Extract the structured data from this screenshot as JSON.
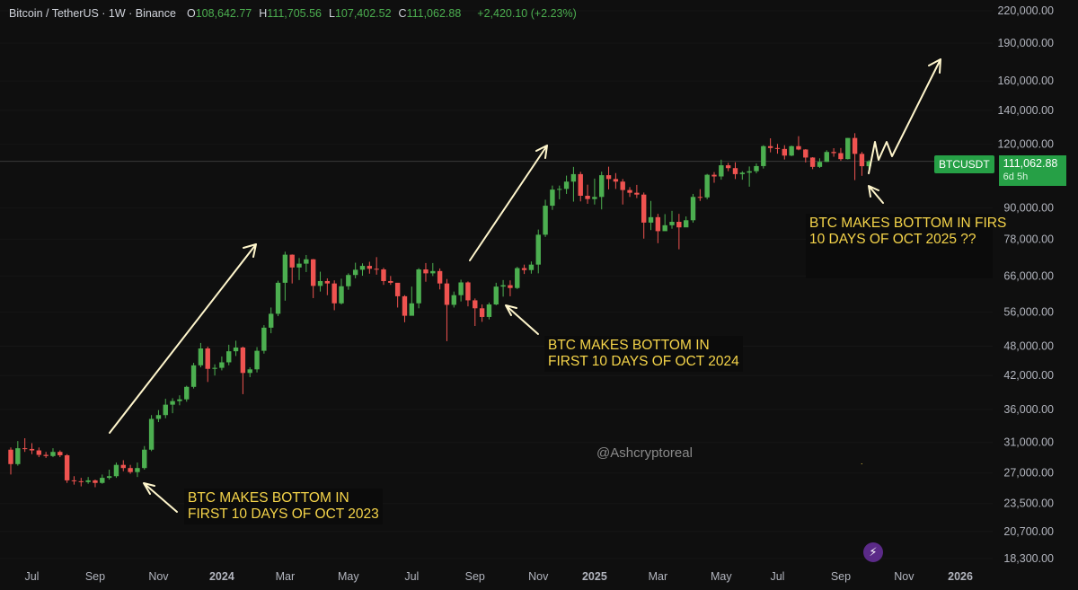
{
  "header": {
    "symbol": "Bitcoin / TetherUS · 1W · Binance",
    "ohlc": [
      {
        "k": "O",
        "v": "108,642.77"
      },
      {
        "k": "H",
        "v": "111,705.56"
      },
      {
        "k": "L",
        "v": "107,402.52"
      },
      {
        "k": "C",
        "v": "111,062.88"
      }
    ],
    "change": "+2,420.10 (+2.23%)"
  },
  "price_tag": {
    "symbol": "BTCUSDT",
    "value": "111,062.88",
    "countdown": "6d 5h"
  },
  "annotations": {
    "a2023": "BTC MAKES BOTTOM IN\nFIRST 10 DAYS OF OCT 2023",
    "a2024": "BTC MAKES BOTTOM IN\nFIRST 10 DAYS OF OCT 2024",
    "a2025": "BTC MAKES BOTTOM IN FIRS\n10 DAYS OF OCT 2025 ??"
  },
  "watermark": "@Ashcryptoreal",
  "colors": {
    "up": "#26a69a",
    "up_body": "#4caf50",
    "down": "#ef5350",
    "arrow": "#fff6cc",
    "background": "#0f0f0f"
  },
  "chart_data": {
    "type": "candlestick",
    "title": "Bitcoin / TetherUS · 1W · Binance",
    "y_scale": "log",
    "ylim": [
      18300,
      220000
    ],
    "y_ticks": [
      {
        "label": "220,000.00",
        "v": 220000
      },
      {
        "label": "190,000.00",
        "v": 190000
      },
      {
        "label": "160,000.00",
        "v": 160000
      },
      {
        "label": "140,000.00",
        "v": 140000
      },
      {
        "label": "120,000.00",
        "v": 120000
      },
      {
        "label": "90,000.00",
        "v": 90000
      },
      {
        "label": "78,000.00",
        "v": 78000
      },
      {
        "label": "66,000.00",
        "v": 66000
      },
      {
        "label": "56,000.00",
        "v": 56000
      },
      {
        "label": "48,000.00",
        "v": 48000
      },
      {
        "label": "42,000.00",
        "v": 42000
      },
      {
        "label": "36,000.00",
        "v": 36000
      },
      {
        "label": "31,000.00",
        "v": 31000
      },
      {
        "label": "27,000.00",
        "v": 27000
      },
      {
        "label": "23,500.00",
        "v": 23500
      },
      {
        "label": "20,700.00",
        "v": 20700
      },
      {
        "label": "18,300.00",
        "v": 18300
      }
    ],
    "x_ticks": [
      {
        "label": "Jul",
        "week": 3,
        "bold": false
      },
      {
        "label": "Sep",
        "week": 12,
        "bold": false
      },
      {
        "label": "Nov",
        "week": 21,
        "bold": false
      },
      {
        "label": "2024",
        "week": 30,
        "bold": true
      },
      {
        "label": "Mar",
        "week": 39,
        "bold": false
      },
      {
        "label": "May",
        "week": 48,
        "bold": false
      },
      {
        "label": "Jul",
        "week": 57,
        "bold": false
      },
      {
        "label": "Sep",
        "week": 66,
        "bold": false
      },
      {
        "label": "Nov",
        "week": 75,
        "bold": false
      },
      {
        "label": "2025",
        "week": 83,
        "bold": true
      },
      {
        "label": "Mar",
        "week": 92,
        "bold": false
      },
      {
        "label": "May",
        "week": 101,
        "bold": false
      },
      {
        "label": "Jul",
        "week": 109,
        "bold": false
      },
      {
        "label": "Sep",
        "week": 118,
        "bold": false
      },
      {
        "label": "Nov",
        "week": 127,
        "bold": false
      },
      {
        "label": "2026",
        "week": 135,
        "bold": true
      }
    ],
    "last_price": 111062.88,
    "candles": [
      [
        30000,
        28100,
        30300,
        26800
      ],
      [
        28100,
        30200,
        31200,
        27900
      ],
      [
        30200,
        30100,
        31600,
        29700
      ],
      [
        30100,
        29900,
        30900,
        29400
      ],
      [
        29900,
        29300,
        30300,
        29000
      ],
      [
        29300,
        29150,
        29700,
        28900
      ],
      [
        29150,
        29700,
        30200,
        29000
      ],
      [
        29700,
        29250,
        29900,
        29000
      ],
      [
        29250,
        26100,
        29400,
        25800
      ],
      [
        26100,
        26000,
        26600,
        25600
      ],
      [
        26000,
        25900,
        26400,
        25400
      ],
      [
        25900,
        26100,
        26500,
        25700
      ],
      [
        26100,
        25800,
        26200,
        25300
      ],
      [
        25800,
        26400,
        26800,
        25700
      ],
      [
        26400,
        26600,
        27400,
        26200
      ],
      [
        26600,
        28000,
        28300,
        26400
      ],
      [
        28000,
        27600,
        28600,
        27200
      ],
      [
        27600,
        27100,
        28000,
        26900
      ],
      [
        27100,
        27600,
        28300,
        26500
      ],
      [
        27600,
        30000,
        30500,
        27400
      ],
      [
        30000,
        34500,
        35100,
        29800
      ],
      [
        34500,
        35100,
        35900,
        34000
      ],
      [
        35100,
        36800,
        37800,
        34600
      ],
      [
        36800,
        37400,
        37900,
        35400
      ],
      [
        37400,
        37700,
        38400,
        36700
      ],
      [
        37700,
        39900,
        40100,
        37300
      ],
      [
        39900,
        44000,
        44500,
        39600
      ],
      [
        44000,
        47500,
        48700,
        43600
      ],
      [
        47500,
        43300,
        47900,
        40800
      ],
      [
        43300,
        43500,
        44200,
        42000
      ],
      [
        43500,
        44600,
        45800,
        43000
      ],
      [
        44600,
        46900,
        48300,
        44000
      ],
      [
        46900,
        47700,
        49200,
        45900
      ],
      [
        47700,
        42500,
        47900,
        38600
      ],
      [
        42500,
        43200,
        43600,
        41700
      ],
      [
        43200,
        47000,
        47800,
        42600
      ],
      [
        47000,
        52200,
        52800,
        46400
      ],
      [
        52200,
        55600,
        57200,
        50900
      ],
      [
        55600,
        64000,
        64600,
        55000
      ],
      [
        64000,
        72700,
        73700,
        59000
      ],
      [
        72700,
        68600,
        72800,
        63800
      ],
      [
        68600,
        69800,
        71600,
        64800
      ],
      [
        69800,
        71200,
        72600,
        67200
      ],
      [
        71200,
        63100,
        71300,
        59700
      ],
      [
        63100,
        64500,
        67300,
        61500
      ],
      [
        64500,
        63800,
        65300,
        60500
      ],
      [
        63800,
        58300,
        64700,
        56500
      ],
      [
        58300,
        63000,
        65200,
        58000
      ],
      [
        63000,
        66300,
        66800,
        62000
      ],
      [
        66300,
        67900,
        70100,
        65300
      ],
      [
        67900,
        69100,
        69900,
        66100
      ],
      [
        69100,
        68200,
        70400,
        66700
      ],
      [
        68200,
        68000,
        71900,
        66400
      ],
      [
        68000,
        64500,
        68500,
        63400
      ],
      [
        64500,
        64000,
        66000,
        63400
      ],
      [
        64000,
        60200,
        62500,
        57200
      ],
      [
        60200,
        55100,
        60500,
        53500
      ],
      [
        55100,
        58300,
        62900,
        56300
      ],
      [
        58300,
        68000,
        68400,
        57000
      ],
      [
        68000,
        66800,
        70000,
        64300
      ],
      [
        66800,
        67500,
        70000,
        66000
      ],
      [
        67500,
        63800,
        68300,
        62100
      ],
      [
        63800,
        57900,
        65100,
        49100
      ],
      [
        57900,
        60500,
        61500,
        57200
      ],
      [
        60500,
        64100,
        64900,
        58800
      ],
      [
        64100,
        59100,
        64400,
        57500
      ],
      [
        59100,
        57000,
        59600,
        52600
      ],
      [
        57000,
        54800,
        58000,
        53600
      ],
      [
        54800,
        58000,
        58500,
        54200
      ],
      [
        58000,
        62900,
        64000,
        57800
      ],
      [
        62900,
        63300,
        64800,
        60100
      ],
      [
        63300,
        62500,
        64700,
        60200
      ],
      [
        62500,
        68400,
        68800,
        62200
      ],
      [
        68400,
        67800,
        69500,
        66600
      ],
      [
        67800,
        69500,
        70500,
        66700
      ],
      [
        69500,
        79600,
        81500,
        66800
      ],
      [
        79600,
        90800,
        93300,
        78800
      ],
      [
        90800,
        97700,
        99500,
        89100
      ],
      [
        97700,
        98000,
        99500,
        93500
      ],
      [
        98000,
        101300,
        104100,
        95800
      ],
      [
        101300,
        104800,
        108300,
        92500
      ],
      [
        104800,
        95000,
        105900,
        92600
      ],
      [
        95000,
        93600,
        99900,
        91600
      ],
      [
        93600,
        94500,
        102700,
        91300
      ],
      [
        94500,
        104300,
        106000,
        89300
      ],
      [
        104300,
        102500,
        108400,
        97800
      ],
      [
        102500,
        101300,
        105300,
        98000
      ],
      [
        101300,
        97500,
        102500,
        91300
      ],
      [
        97500,
        96300,
        98800,
        94500
      ],
      [
        96300,
        95500,
        99800,
        94000
      ],
      [
        95500,
        84100,
        96400,
        78200
      ],
      [
        84100,
        86200,
        92800,
        81300
      ],
      [
        86200,
        80900,
        87500,
        76600
      ],
      [
        80900,
        83100,
        87400,
        81300
      ],
      [
        83100,
        84400,
        88700,
        81800
      ],
      [
        84400,
        82300,
        87500,
        74500
      ],
      [
        82300,
        85000,
        86500,
        83000
      ],
      [
        85000,
        94500,
        95800,
        84100
      ],
      [
        94500,
        94300,
        97900,
        92800
      ],
      [
        94300,
        104500,
        104900,
        93500
      ],
      [
        104500,
        103700,
        105800,
        100800
      ],
      [
        103700,
        109100,
        111900,
        102200
      ],
      [
        109100,
        107700,
        110300,
        106200
      ],
      [
        107700,
        104800,
        110600,
        102500
      ],
      [
        104800,
        105500,
        106200,
        102200
      ],
      [
        105500,
        106200,
        108500,
        99000
      ],
      [
        106200,
        108700,
        110000,
        105200
      ],
      [
        108700,
        119000,
        119500,
        107500
      ],
      [
        119000,
        118000,
        123300,
        115700
      ],
      [
        118000,
        117500,
        120200,
        115000
      ],
      [
        117500,
        114000,
        119500,
        112000
      ],
      [
        114000,
        119000,
        119300,
        113700
      ],
      [
        119000,
        117200,
        124500,
        116800
      ],
      [
        117200,
        113000,
        117400,
        110500
      ],
      [
        113000,
        108300,
        113200,
        107200
      ],
      [
        108300,
        110800,
        112600,
        107800
      ],
      [
        110800,
        115900,
        116800,
        110700
      ],
      [
        115900,
        115300,
        117900,
        113400
      ],
      [
        115300,
        112200,
        118000,
        111400
      ],
      [
        112200,
        123500,
        123500,
        112000
      ],
      [
        123500,
        114900,
        126200,
        102000
      ],
      [
        114900,
        108643,
        115900,
        104000
      ],
      [
        108643,
        111063,
        111706,
        107403
      ]
    ]
  }
}
